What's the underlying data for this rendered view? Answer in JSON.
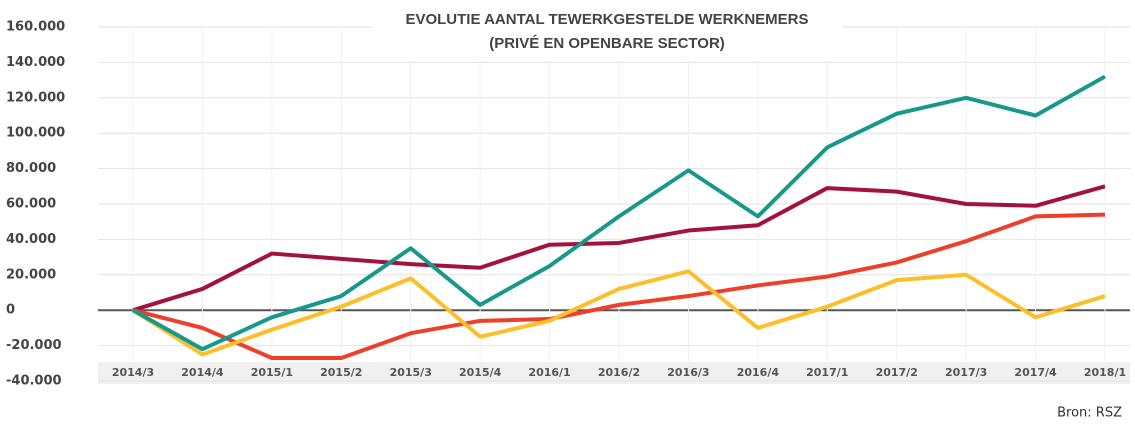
{
  "chart_data": {
    "type": "line",
    "title": "EVOLUTIE AANTAL TEWERKGESTELDE WERKNEMERS",
    "subtitle": "(PRIVÉ EN OPENBARE SECTOR)",
    "source": "Bron: RSZ",
    "categories": [
      "2014/3",
      "2014/4",
      "2015/1",
      "2015/2",
      "2015/3",
      "2015/4",
      "2016/1",
      "2016/2",
      "2016/3",
      "2016/4",
      "2017/1",
      "2017/2",
      "2017/3",
      "2017/4",
      "2018/1"
    ],
    "series": [
      {
        "color": "#a3123a",
        "values": [
          0,
          12000,
          32000,
          29000,
          26000,
          24000,
          37000,
          38000,
          45000,
          48000,
          69000,
          67000,
          60000,
          59000,
          70000
        ]
      },
      {
        "color": "#ee3e2c",
        "values": [
          0,
          -10000,
          -27000,
          -27000,
          -13000,
          -6000,
          -5000,
          3000,
          8000,
          14000,
          19000,
          27000,
          39000,
          53000,
          54000
        ]
      },
      {
        "color": "#fbbf2a",
        "values": [
          0,
          -25000,
          -11000,
          2000,
          18000,
          -15000,
          -6000,
          12000,
          22000,
          -10000,
          2000,
          17000,
          20000,
          -4000,
          8000
        ]
      },
      {
        "color": "#16988a",
        "values": [
          0,
          -22000,
          -4000,
          8000,
          35000,
          3000,
          25000,
          53000,
          79000,
          53000,
          92000,
          111000,
          120000,
          110000,
          132000
        ]
      }
    ],
    "ylim": [
      -40000,
      160000
    ],
    "yticks": [
      {
        "value": -40000,
        "label": "-40.000"
      },
      {
        "value": -20000,
        "label": "-20.000"
      },
      0,
      {
        "value": 20000,
        "label": "20.000"
      },
      {
        "value": 40000,
        "label": "40.000"
      },
      {
        "value": 60000,
        "label": "60.000"
      },
      {
        "value": 80000,
        "label": "80.000"
      },
      {
        "value": 100000,
        "label": "100.000"
      },
      {
        "value": 120000,
        "label": "120.000"
      },
      {
        "value": 140000,
        "label": "140.000"
      },
      {
        "value": 160000,
        "label": "160.000"
      }
    ],
    "grid": true
  }
}
